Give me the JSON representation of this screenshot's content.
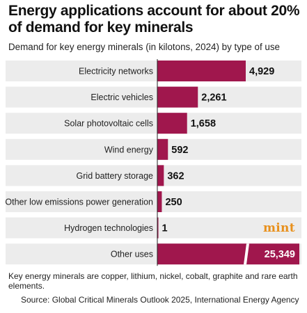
{
  "title": "Energy applications account for about 20% of demand for key minerals",
  "subtitle": "Demand for key energy minerals (in kilotons, 2024) by type of use",
  "logo": "mint",
  "footnote": "Key energy minerals are copper, lithium, nickel, cobalt, graphite and rare earth elements.",
  "source": "Source: Global Critical Minerals Outlook 2025, International Energy Agency",
  "colors": {
    "bar": "#a0174d",
    "row_bg": "#ececec",
    "logo": "#e8901c"
  },
  "chart_data": {
    "type": "bar",
    "orientation": "horizontal",
    "title": "Energy applications account for about 20% of demand for key minerals",
    "subtitle": "Demand for key energy minerals (in kilotons, 2024) by type of use",
    "categories": [
      "Electricity networks",
      "Electric vehicles",
      "Solar photovoltaic cells",
      "Wind energy",
      "Grid battery storage",
      "Other low emissions power generation",
      "Hydrogen technologies",
      "Other uses"
    ],
    "values": [
      4929,
      2261,
      1658,
      592,
      362,
      250,
      1,
      25349
    ],
    "value_labels": [
      "4,929",
      "2,261",
      "1,658",
      "592",
      "362",
      "250",
      "1",
      "25,349"
    ],
    "grid": false,
    "legend": "none"
  }
}
